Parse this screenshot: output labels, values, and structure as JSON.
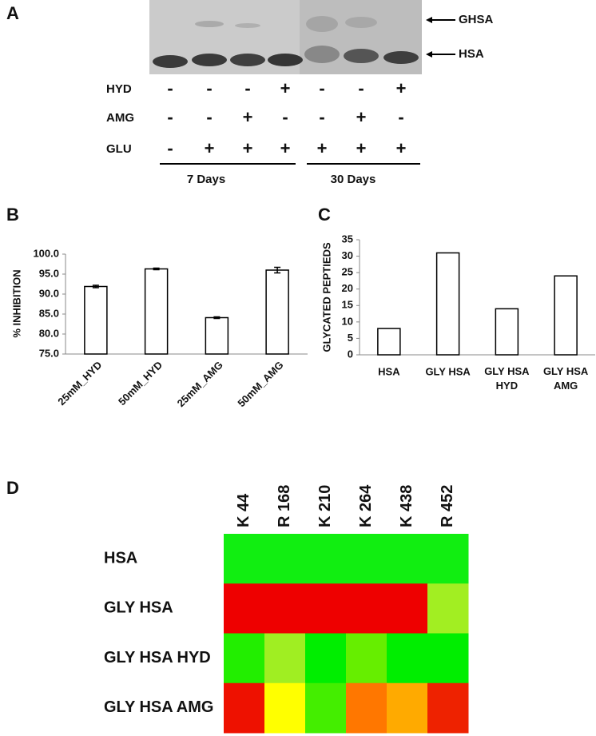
{
  "panel_labels": [
    "A",
    "B",
    "C",
    "D"
  ],
  "gel": {
    "markers": [
      "GHSA",
      "HSA"
    ],
    "rows": [
      {
        "label": "HYD",
        "signs": [
          "-",
          "-",
          "-",
          "+",
          "-",
          "-",
          "+"
        ]
      },
      {
        "label": "AMG",
        "signs": [
          "-",
          "-",
          "+",
          "-",
          "-",
          "+",
          "-"
        ]
      },
      {
        "label": "GLU",
        "signs": [
          "-",
          "+",
          "+",
          "+",
          "+",
          "+",
          "+"
        ]
      }
    ],
    "groups": [
      "7 Days",
      "30 Days"
    ]
  },
  "chart_data": [
    {
      "type": "bar",
      "ylabel": "% INHIBITION",
      "categories": [
        "25mM_HYD",
        "50mM_HYD",
        "25mM_AMG",
        "50mM_AMG"
      ],
      "values": [
        91.9,
        96.3,
        84.1,
        96.0
      ],
      "errors": [
        0.3,
        0.2,
        0.2,
        0.7
      ],
      "color": "#ffffff",
      "ylim": [
        75,
        100
      ],
      "yticks": [
        {
          "value": 75,
          "label": "75.0"
        },
        {
          "value": 80,
          "label": "80.0"
        },
        {
          "value": 85,
          "label": "85.0"
        },
        {
          "value": 90,
          "label": "90.0"
        },
        {
          "value": 95,
          "label": "95.0"
        },
        {
          "value": 100,
          "label": "100.0"
        }
      ],
      "grid": false
    },
    {
      "type": "bar",
      "ylabel": "GLYCATED PEPTIEDS",
      "categories": [
        "HSA",
        "GLY HSA",
        "GLY HSA HYD",
        "GLY HSA AMG"
      ],
      "values": [
        8,
        31,
        14,
        24
      ],
      "color": "#ffffff",
      "ylim": [
        0,
        35
      ],
      "yticks": [
        0,
        5,
        10,
        15,
        20,
        25,
        30,
        35
      ],
      "grid": false
    }
  ],
  "heatmap": {
    "columns": [
      "K 44",
      "R 168",
      "K 210",
      "K 264",
      "K 438",
      "R 452"
    ],
    "rows": [
      {
        "label": "HSA",
        "colors": [
          "#11ee11",
          "#11ee11",
          "#11ee11",
          "#11ee11",
          "#11ee11",
          "#11ee11"
        ]
      },
      {
        "label": "GLY HSA",
        "colors": [
          "#ee0000",
          "#ee0000",
          "#ee0000",
          "#ee0000",
          "#ee0000",
          "#a2ee22"
        ]
      },
      {
        "label": "GLY HSA HYD",
        "colors": [
          "#22ee00",
          "#a0ee22",
          "#00ee00",
          "#66ee00",
          "#00ee00",
          "#00ee00"
        ]
      },
      {
        "label": "GLY HSA AMG",
        "colors": [
          "#ee1100",
          "#ffff00",
          "#44ee00",
          "#ff7700",
          "#ffaa00",
          "#ee2200"
        ]
      }
    ]
  }
}
